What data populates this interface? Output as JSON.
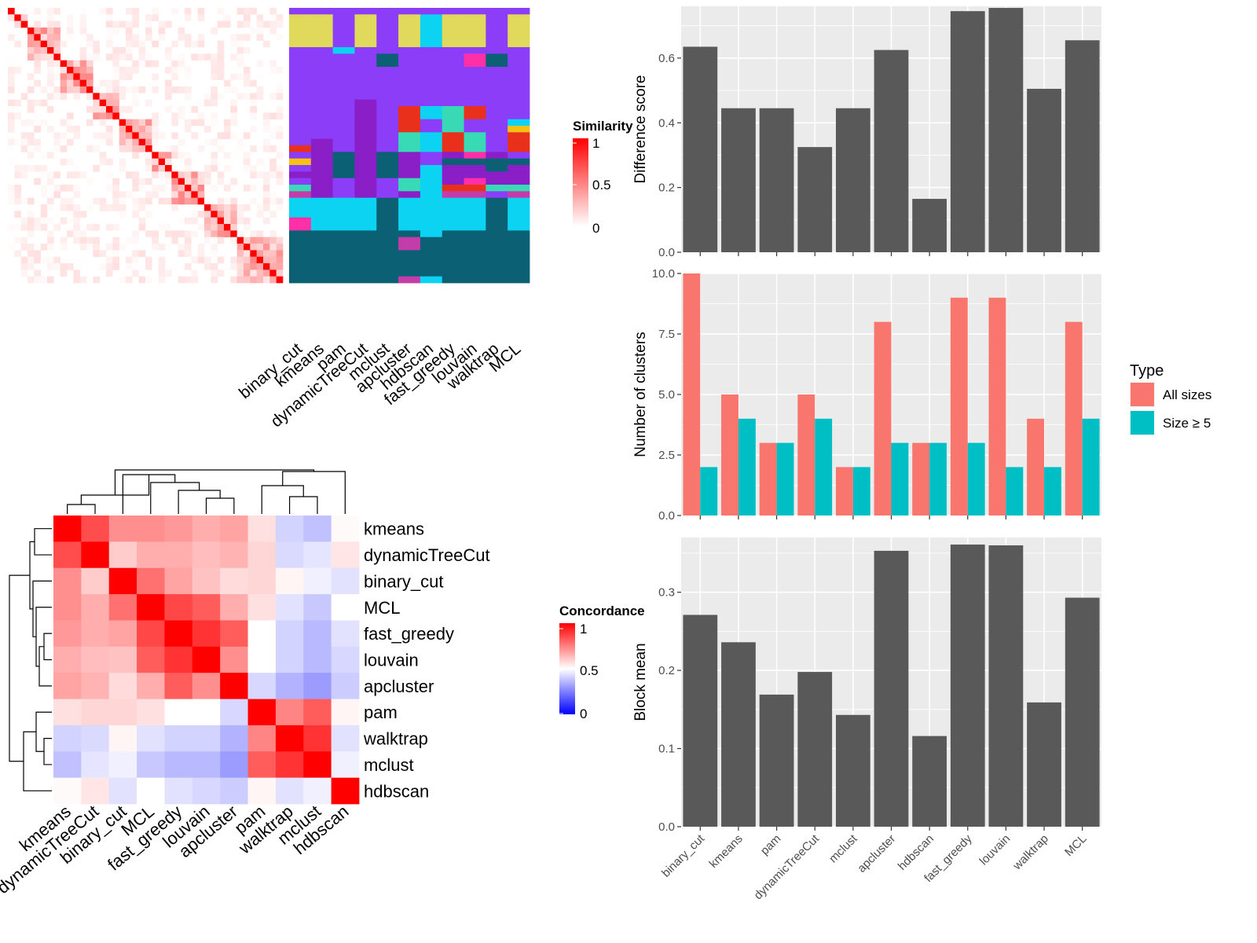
{
  "chart_data": [
    {
      "type": "heatmap",
      "panel": "similarity",
      "legend_title": "Similarity",
      "legend_ticks": [
        "1",
        "0.5",
        "0"
      ],
      "matrix_size": 42,
      "column_labels": [
        "binary_cut",
        "kmeans",
        "pam",
        "dynamicTreeCut",
        "mclust",
        "apcluster",
        "hdbscan",
        "fast_greedy",
        "louvain",
        "walktrap",
        "MCL"
      ],
      "cluster_colors": [
        "#E0D95C",
        "#8C3DF7",
        "#0CD3F2",
        "#0B6074",
        "#8B1FC7",
        "#E8301B",
        "#37DAB5",
        "#FF2FA7",
        "#F6C113",
        "#C43CA9"
      ],
      "diagonal_blocks": [
        [
          1,
          3
        ],
        [
          3,
          8
        ],
        [
          8,
          13
        ],
        [
          13,
          17
        ],
        [
          17,
          22
        ],
        [
          22,
          25
        ],
        [
          25,
          30
        ],
        [
          30,
          35
        ],
        [
          35,
          42
        ]
      ],
      "assignments": [
        [
          1,
          1,
          1,
          1,
          1,
          1,
          1,
          1,
          1,
          1,
          1
        ],
        [
          0,
          0,
          1,
          0,
          1,
          0,
          2,
          0,
          0,
          1,
          0
        ],
        [
          0,
          0,
          1,
          0,
          1,
          0,
          2,
          0,
          0,
          1,
          0
        ],
        [
          0,
          0,
          1,
          0,
          1,
          0,
          2,
          0,
          0,
          1,
          0
        ],
        [
          0,
          0,
          1,
          0,
          1,
          0,
          2,
          0,
          0,
          1,
          0
        ],
        [
          0,
          0,
          1,
          0,
          1,
          0,
          2,
          0,
          0,
          1,
          0
        ],
        [
          1,
          1,
          2,
          1,
          1,
          1,
          1,
          1,
          1,
          1,
          1
        ],
        [
          1,
          1,
          1,
          1,
          3,
          1,
          1,
          1,
          7,
          3,
          1
        ],
        [
          1,
          1,
          1,
          1,
          3,
          1,
          1,
          1,
          7,
          3,
          1
        ],
        [
          1,
          1,
          1,
          1,
          1,
          1,
          1,
          1,
          1,
          1,
          1
        ],
        [
          1,
          1,
          1,
          1,
          1,
          1,
          1,
          1,
          1,
          1,
          1
        ],
        [
          1,
          1,
          1,
          1,
          1,
          1,
          1,
          1,
          1,
          1,
          1
        ],
        [
          1,
          1,
          1,
          1,
          1,
          1,
          1,
          1,
          1,
          1,
          1
        ],
        [
          1,
          1,
          1,
          1,
          1,
          1,
          1,
          1,
          1,
          1,
          1
        ],
        [
          1,
          1,
          1,
          4,
          1,
          1,
          1,
          1,
          1,
          1,
          1
        ],
        [
          1,
          1,
          1,
          4,
          1,
          5,
          2,
          6,
          5,
          1,
          1
        ],
        [
          1,
          1,
          1,
          4,
          1,
          5,
          2,
          6,
          5,
          1,
          1
        ],
        [
          1,
          1,
          1,
          4,
          1,
          5,
          1,
          6,
          1,
          1,
          2
        ],
        [
          1,
          1,
          1,
          4,
          1,
          5,
          1,
          6,
          1,
          1,
          8
        ],
        [
          1,
          1,
          1,
          4,
          1,
          6,
          2,
          5,
          6,
          1,
          5
        ],
        [
          1,
          4,
          1,
          4,
          1,
          6,
          2,
          5,
          6,
          1,
          5
        ],
        [
          5,
          4,
          1,
          4,
          1,
          6,
          2,
          5,
          6,
          1,
          5
        ],
        [
          1,
          4,
          3,
          4,
          3,
          4,
          1,
          4,
          7,
          4,
          1
        ],
        [
          8,
          4,
          3,
          4,
          3,
          4,
          1,
          3,
          3,
          3,
          3
        ],
        [
          1,
          4,
          3,
          4,
          3,
          4,
          2,
          4,
          4,
          3,
          4
        ],
        [
          4,
          4,
          3,
          4,
          3,
          4,
          2,
          4,
          4,
          4,
          4
        ],
        [
          1,
          4,
          1,
          4,
          1,
          6,
          2,
          4,
          7,
          4,
          4
        ],
        [
          6,
          4,
          1,
          4,
          1,
          6,
          2,
          5,
          5,
          6,
          6
        ],
        [
          9,
          4,
          1,
          4,
          1,
          4,
          2,
          9,
          9,
          1,
          9
        ],
        [
          2,
          2,
          2,
          2,
          3,
          2,
          2,
          2,
          2,
          3,
          2
        ],
        [
          2,
          2,
          2,
          2,
          3,
          2,
          2,
          2,
          2,
          3,
          2
        ],
        [
          2,
          2,
          2,
          2,
          3,
          2,
          2,
          2,
          2,
          3,
          2
        ],
        [
          7,
          2,
          2,
          2,
          3,
          2,
          2,
          2,
          2,
          3,
          2
        ],
        [
          7,
          2,
          2,
          2,
          3,
          2,
          2,
          2,
          2,
          3,
          2
        ],
        [
          3,
          3,
          3,
          3,
          3,
          3,
          2,
          3,
          3,
          3,
          3
        ],
        [
          3,
          3,
          3,
          3,
          3,
          9,
          3,
          3,
          3,
          3,
          3
        ],
        [
          3,
          3,
          3,
          3,
          3,
          9,
          3,
          3,
          3,
          3,
          3
        ],
        [
          3,
          3,
          3,
          3,
          3,
          3,
          3,
          3,
          3,
          3,
          3
        ],
        [
          3,
          3,
          3,
          3,
          3,
          3,
          3,
          3,
          3,
          3,
          3
        ],
        [
          3,
          3,
          3,
          3,
          3,
          3,
          3,
          3,
          3,
          3,
          3
        ],
        [
          3,
          3,
          3,
          3,
          3,
          3,
          3,
          3,
          3,
          3,
          3
        ],
        [
          3,
          3,
          3,
          3,
          3,
          9,
          2,
          3,
          3,
          3,
          3
        ]
      ]
    },
    {
      "type": "heatmap",
      "panel": "concordance",
      "legend_title": "Concordance",
      "legend_ticks": [
        "1",
        "0.5",
        "0"
      ],
      "labels": [
        "kmeans",
        "dynamicTreeCut",
        "binary_cut",
        "MCL",
        "fast_greedy",
        "louvain",
        "apcluster",
        "pam",
        "walktrap",
        "mclust",
        "hdbscan"
      ],
      "values": [
        [
          1.0,
          0.85,
          0.72,
          0.72,
          0.7,
          0.66,
          0.68,
          0.56,
          0.38,
          0.33,
          0.51
        ],
        [
          0.85,
          1.0,
          0.6,
          0.66,
          0.66,
          0.63,
          0.65,
          0.58,
          0.4,
          0.43,
          0.55
        ],
        [
          0.72,
          0.6,
          1.0,
          0.78,
          0.68,
          0.62,
          0.57,
          0.58,
          0.52,
          0.46,
          0.42
        ],
        [
          0.72,
          0.66,
          0.78,
          1.0,
          0.86,
          0.82,
          0.66,
          0.56,
          0.42,
          0.35,
          0.5
        ],
        [
          0.7,
          0.66,
          0.68,
          0.86,
          1.0,
          0.9,
          0.82,
          0.5,
          0.38,
          0.31,
          0.42
        ],
        [
          0.66,
          0.63,
          0.62,
          0.82,
          0.9,
          1.0,
          0.72,
          0.5,
          0.38,
          0.31,
          0.39
        ],
        [
          0.68,
          0.65,
          0.57,
          0.66,
          0.82,
          0.72,
          1.0,
          0.39,
          0.29,
          0.23,
          0.36
        ],
        [
          0.56,
          0.58,
          0.58,
          0.56,
          0.5,
          0.5,
          0.39,
          1.0,
          0.74,
          0.82,
          0.52
        ],
        [
          0.38,
          0.4,
          0.52,
          0.42,
          0.38,
          0.38,
          0.29,
          0.74,
          1.0,
          0.9,
          0.42
        ],
        [
          0.33,
          0.43,
          0.46,
          0.35,
          0.31,
          0.31,
          0.23,
          0.82,
          0.9,
          1.0,
          0.46
        ],
        [
          0.51,
          0.55,
          0.42,
          0.5,
          0.42,
          0.39,
          0.36,
          0.52,
          0.42,
          0.46,
          1.0
        ]
      ]
    },
    {
      "type": "bar",
      "panel": "difference",
      "categories": [
        "binary_cut",
        "kmeans",
        "pam",
        "dynamicTreeCut",
        "mclust",
        "apcluster",
        "hdbscan",
        "fast_greedy",
        "louvain",
        "walktrap",
        "MCL"
      ],
      "values": [
        0.635,
        0.445,
        0.445,
        0.325,
        0.445,
        0.625,
        0.165,
        0.745,
        0.755,
        0.505,
        0.655
      ],
      "ylabel": "Difference score",
      "ylim": [
        0,
        0.76
      ],
      "yticks": [
        0.0,
        0.2,
        0.4,
        0.6
      ],
      "ytick_labels": [
        "0.0",
        "0.2",
        "0.4",
        "0.6"
      ],
      "color": "#595959"
    },
    {
      "type": "bar",
      "panel": "clusters",
      "categories": [
        "binary_cut",
        "kmeans",
        "pam",
        "dynamicTreeCut",
        "mclust",
        "apcluster",
        "hdbscan",
        "fast_greedy",
        "louvain",
        "walktrap",
        "MCL"
      ],
      "series": [
        {
          "name": "All sizes",
          "values": [
            10,
            5,
            3,
            5,
            2,
            8,
            3,
            9,
            9,
            4,
            8
          ],
          "color": "#F8766D"
        },
        {
          "name": "Size ≥ 5",
          "values": [
            2,
            4,
            3,
            4,
            2,
            3,
            3,
            3,
            2,
            2,
            4
          ],
          "color": "#00BFC4"
        }
      ],
      "ylabel": "Number of clusters",
      "ylim": [
        0,
        10
      ],
      "yticks": [
        0,
        2.5,
        5,
        7.5,
        10
      ],
      "ytick_labels": [
        "0.0",
        "2.5",
        "5.0",
        "7.5",
        "10.0"
      ],
      "legend_title": "Type",
      "legend_position": "right"
    },
    {
      "type": "bar",
      "panel": "blockmean",
      "categories": [
        "binary_cut",
        "kmeans",
        "pam",
        "dynamicTreeCut",
        "mclust",
        "apcluster",
        "hdbscan",
        "fast_greedy",
        "louvain",
        "walktrap",
        "MCL"
      ],
      "values": [
        0.271,
        0.236,
        0.169,
        0.198,
        0.143,
        0.353,
        0.116,
        0.361,
        0.36,
        0.159,
        0.293
      ],
      "ylabel": "Block mean",
      "ylim": [
        0,
        0.37
      ],
      "yticks": [
        0.0,
        0.1,
        0.2,
        0.3
      ],
      "ytick_labels": [
        "0.0",
        "0.1",
        "0.2",
        "0.3"
      ],
      "color": "#595959"
    }
  ]
}
